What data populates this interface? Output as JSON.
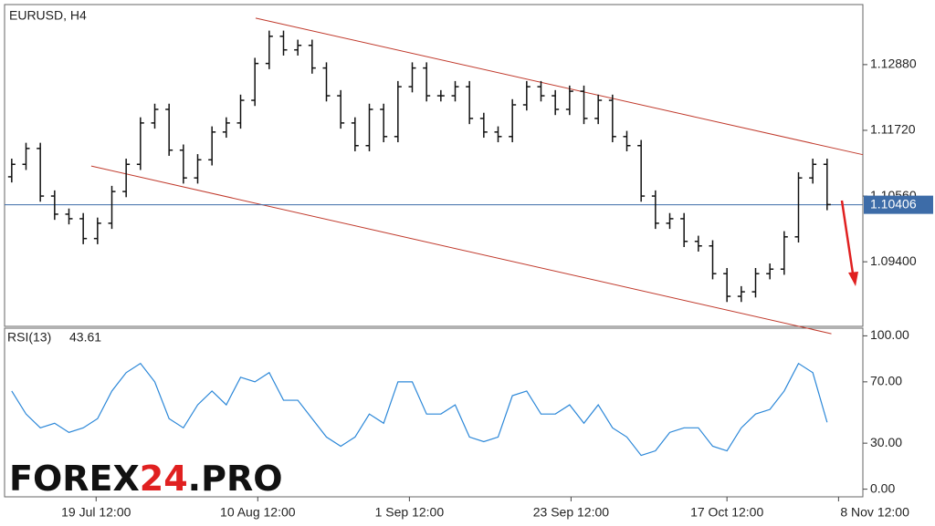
{
  "chart_data": {
    "type": "ohlc",
    "title": "EURUSD, H4",
    "xlim": [
      -0.5,
      59.5
    ],
    "xticks": [
      {
        "value": 5.9,
        "label": "19 Jul 12:00"
      },
      {
        "value": 17.2,
        "label": "10 Aug 12:00"
      },
      {
        "value": 27.8,
        "label": "1 Sep 12:00"
      },
      {
        "value": 39.1,
        "label": "23 Sep 12:00"
      },
      {
        "value": 50.0,
        "label": "17 Oct 12:00"
      },
      {
        "value": 57.8,
        "label": "8 Nov 12:00"
      }
    ],
    "ylim": [
      1.0826,
      1.1394
    ],
    "yticks": [
      {
        "value": 1.1288,
        "label": "1.12880"
      },
      {
        "value": 1.1172,
        "label": "1.11720"
      },
      {
        "value": 1.1056,
        "label": "1.10560"
      },
      {
        "value": 1.094,
        "label": "1.09400"
      }
    ],
    "color": "#111111",
    "open": [
      1.109,
      1.1112,
      1.114,
      1.1056,
      1.1024,
      1.1016,
      1.0981,
      1.1008,
      1.1064,
      1.1112,
      1.1185,
      1.1209,
      1.1137,
      1.1088,
      1.112,
      1.1169,
      1.1185,
      1.1225,
      1.129,
      1.1338,
      1.1314,
      1.1322,
      1.1282,
      1.1233,
      1.1185,
      1.1145,
      1.1209,
      1.1161,
      1.1249,
      1.1282,
      1.1233,
      1.1233,
      1.1249,
      1.1193,
      1.1169,
      1.1161,
      1.1217,
      1.1249,
      1.1233,
      1.1209,
      1.1241,
      1.1193,
      1.1225,
      1.1161,
      1.1145,
      1.1056,
      1.1008,
      1.1016,
      1.0976,
      1.0968,
      1.0919,
      1.0879,
      1.0887,
      1.0919,
      1.0927,
      1.0984,
      1.1088,
      1.1112
    ],
    "high": [
      1.1122,
      1.115,
      1.115,
      1.1066,
      1.1034,
      1.1026,
      1.1018,
      1.1074,
      1.1122,
      1.1195,
      1.1219,
      1.1219,
      1.1147,
      1.113,
      1.1179,
      1.1195,
      1.1235,
      1.13,
      1.1348,
      1.1348,
      1.1332,
      1.1332,
      1.1292,
      1.1243,
      1.1195,
      1.1219,
      1.1219,
      1.1259,
      1.1292,
      1.1292,
      1.1243,
      1.1259,
      1.1259,
      1.1203,
      1.1179,
      1.1227,
      1.1259,
      1.1259,
      1.1243,
      1.1251,
      1.1251,
      1.1235,
      1.1235,
      1.1171,
      1.1155,
      1.1066,
      1.1026,
      1.1026,
      1.0986,
      1.0978,
      1.0929,
      1.0897,
      1.0929,
      1.0937,
      1.0994,
      1.1098,
      1.1122,
      1.1122
    ],
    "low": [
      1.108,
      1.1102,
      1.1046,
      1.1014,
      1.1006,
      1.0971,
      1.0971,
      1.0998,
      1.1054,
      1.1102,
      1.1175,
      1.1127,
      1.1078,
      1.1078,
      1.111,
      1.1159,
      1.1175,
      1.1215,
      1.128,
      1.1304,
      1.1304,
      1.1272,
      1.1223,
      1.1175,
      1.1135,
      1.1135,
      1.1151,
      1.1151,
      1.1239,
      1.1223,
      1.1223,
      1.1223,
      1.1183,
      1.1159,
      1.1151,
      1.1151,
      1.1207,
      1.1223,
      1.1199,
      1.1199,
      1.1183,
      1.1183,
      1.1151,
      1.1135,
      1.1046,
      1.0998,
      1.0998,
      1.0966,
      1.0958,
      1.0909,
      1.0869,
      1.0869,
      1.0877,
      1.0909,
      1.0917,
      1.0974,
      1.1078,
      1.1031
    ],
    "close": [
      1.1112,
      1.114,
      1.1056,
      1.1024,
      1.1016,
      1.0981,
      1.1008,
      1.1064,
      1.1112,
      1.1185,
      1.1209,
      1.1137,
      1.1088,
      1.112,
      1.1169,
      1.1185,
      1.1225,
      1.129,
      1.1338,
      1.1314,
      1.1322,
      1.1282,
      1.1233,
      1.1185,
      1.1145,
      1.1209,
      1.1161,
      1.1249,
      1.1282,
      1.1233,
      1.1233,
      1.1249,
      1.1193,
      1.1169,
      1.1161,
      1.1217,
      1.1249,
      1.1233,
      1.1209,
      1.1241,
      1.1193,
      1.1225,
      1.1161,
      1.1145,
      1.1056,
      1.1008,
      1.1016,
      1.0976,
      1.0968,
      1.0919,
      1.0879,
      1.0887,
      1.0919,
      1.0927,
      1.0984,
      1.1088,
      1.1112,
      1.1041
    ],
    "current_price": 1.10406,
    "current_price_color": "#3d6ca8",
    "channels": [
      {
        "color": "#c0392b",
        "x": [
          17.05,
          59.5
        ],
        "y": [
          1.137,
          1.1129
        ]
      },
      {
        "color": "#c0392b",
        "x": [
          5.56,
          57.3
        ],
        "y": [
          1.1109,
          1.0813
        ]
      }
    ],
    "rsi": {
      "name": "RSI(13)",
      "color": "#2b87d8",
      "ylim": [
        -5,
        105
      ],
      "yticks": [
        {
          "value": 100,
          "label": "100.00"
        },
        {
          "value": 70,
          "label": "70.00"
        },
        {
          "value": 30,
          "label": "30.00"
        },
        {
          "value": 0,
          "label": "0.00"
        }
      ],
      "values": [
        64,
        49,
        40,
        43,
        37,
        40,
        46,
        64,
        76,
        82,
        70,
        46,
        40,
        55,
        64,
        55,
        73,
        70,
        76,
        58,
        58,
        46,
        34,
        28,
        34,
        49,
        43,
        70,
        70,
        49,
        49,
        55,
        34,
        31,
        34,
        61,
        64,
        49,
        49,
        55,
        43,
        55,
        40,
        34,
        22,
        25,
        37,
        40,
        40,
        28,
        25,
        40,
        49,
        52,
        64,
        82,
        76,
        43.61
      ]
    },
    "watermark": [
      "FOREX",
      "24",
      ".PRO"
    ]
  }
}
